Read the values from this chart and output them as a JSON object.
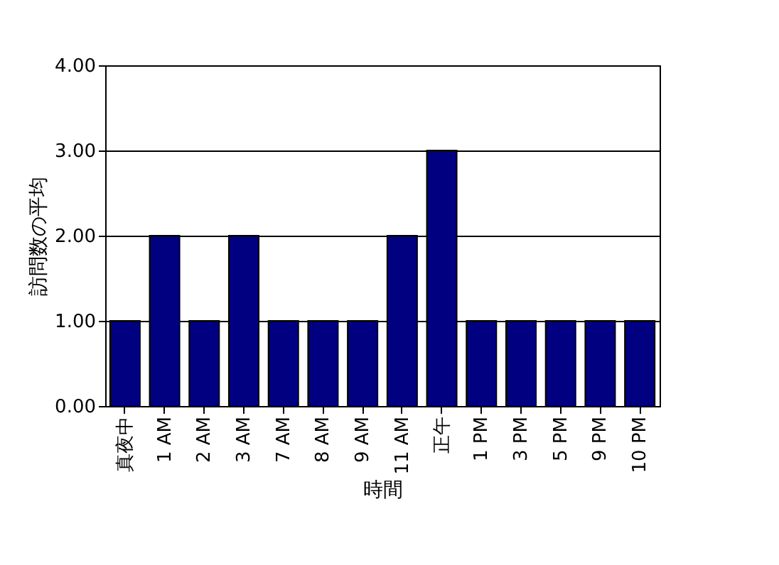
{
  "chart_data": {
    "type": "bar",
    "xlabel": "時間",
    "ylabel": "訪問数の平均",
    "categories": [
      "真夜中",
      "1 AM",
      "2 AM",
      "3 AM",
      "7 AM",
      "8 AM",
      "9 AM",
      "11 AM",
      "正午",
      "1 PM",
      "3 PM",
      "5 PM",
      "9 PM",
      "10 PM"
    ],
    "values": [
      1,
      2,
      1,
      2,
      1,
      1,
      1,
      2,
      3,
      1,
      1,
      1,
      1,
      1
    ],
    "color": "#000080",
    "ylim": [
      0,
      4
    ],
    "yticks": [
      {
        "value": 0,
        "label": "0.00"
      },
      {
        "value": 1,
        "label": "1.00"
      },
      {
        "value": 2,
        "label": "2.00"
      },
      {
        "value": 3,
        "label": "3.00"
      },
      {
        "value": 4,
        "label": "4.00"
      }
    ],
    "grid": "y"
  }
}
